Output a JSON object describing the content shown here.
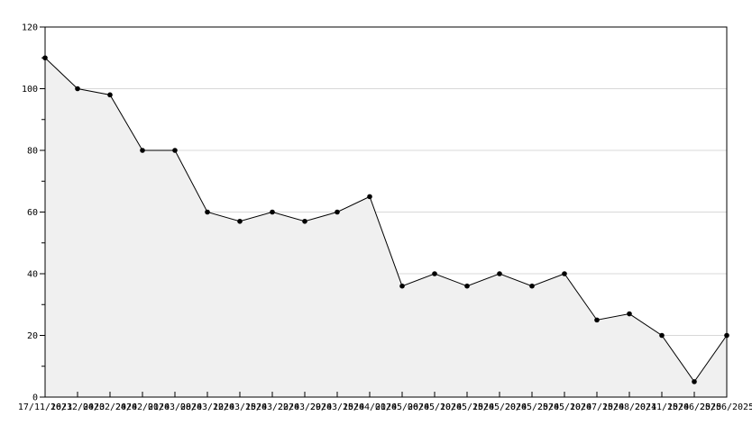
{
  "chart_data": {
    "type": "area",
    "title": "",
    "xlabel": "",
    "ylabel": "",
    "x_labels": [
      "17/11/2023",
      "16/12/2023",
      "04/02/2024",
      "24/02/2024",
      "01/03/2024",
      "08/03/2024",
      "12/03/2024",
      "15/03/2024",
      "22/03/2024",
      "29/03/2024",
      "15/04/2024",
      "01/05/2024",
      "06/05/2024",
      "10/05/2024",
      "15/05/2024",
      "20/05/2024",
      "25/05/2024",
      "10/07/2024",
      "15/08/2024",
      "20/11/2024",
      "15/06/2025",
      "25/06/2025"
    ],
    "values": [
      110,
      100,
      98,
      80,
      80,
      60,
      57,
      60,
      57,
      60,
      65,
      36,
      40,
      36,
      40,
      36,
      40,
      25,
      27,
      20,
      5,
      20
    ],
    "ylim": [
      0,
      120
    ],
    "y_major_ticks": [
      0,
      20,
      40,
      60,
      80,
      100,
      120
    ],
    "y_minor_ticks": [
      10,
      30,
      50,
      70,
      90,
      110
    ],
    "grid": "horizontal",
    "legend": "none",
    "marker": "filled-circle",
    "colors": {
      "line": "#000000",
      "marker": "#000000",
      "fill": "#f0f0f0",
      "grid": "#d8d8d8",
      "frame": "#000000",
      "text": "#000000",
      "background": "#ffffff"
    }
  }
}
